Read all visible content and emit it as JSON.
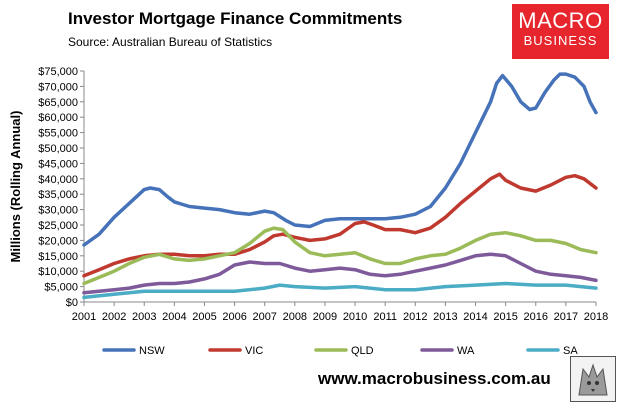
{
  "header": {
    "title": "Investor Mortgage Finance Commitments",
    "subtitle": "Source: Australian Bureau of Statistics"
  },
  "logo": {
    "line1": "MACRO",
    "line2": "BUSINESS"
  },
  "footer": {
    "website": "www.macrobusiness.com.au",
    "mascot_icon": "wolf-mascot-icon"
  },
  "colors": {
    "NSW": "#4572b8",
    "VIC": "#c0392f",
    "QLD": "#9bbb59",
    "WA": "#7e5a9b",
    "SA": "#4bacc6",
    "brand": "#e6262c"
  },
  "chart_data": {
    "type": "line",
    "title": "",
    "xlabel": "",
    "ylabel": "Millions (Rolling Annual)",
    "xlim": [
      2001,
      2018
    ],
    "ylim": [
      0,
      75000
    ],
    "yticks": [
      0,
      5000,
      10000,
      15000,
      20000,
      25000,
      30000,
      35000,
      40000,
      45000,
      50000,
      55000,
      60000,
      65000,
      70000,
      75000
    ],
    "ytick_labels": [
      "$0",
      "$5,000",
      "$10,000",
      "$15,000",
      "$20,000",
      "$25,000",
      "$30,000",
      "$35,000",
      "$40,000",
      "$45,000",
      "$50,000",
      "$55,000",
      "$60,000",
      "$65,000",
      "$70,000",
      "$75,000"
    ],
    "xticks": [
      2001,
      2002,
      2003,
      2004,
      2005,
      2006,
      2007,
      2008,
      2009,
      2010,
      2011,
      2012,
      2013,
      2014,
      2015,
      2016,
      2017,
      2018
    ],
    "xtick_labels": [
      "2001",
      "2002",
      "2003",
      "2004",
      "2005",
      "2006",
      "2007",
      "2008",
      "2009",
      "2010",
      "2011",
      "2012",
      "2013",
      "2014",
      "2015",
      "2016",
      "2017",
      "2018"
    ],
    "grid": false,
    "legend_position": "bottom",
    "series": [
      {
        "name": "NSW",
        "x": [
          2001,
          2001.5,
          2002,
          2002.5,
          2003,
          2003.2,
          2003.5,
          2003.8,
          2004,
          2004.5,
          2005,
          2005.5,
          2006,
          2006.5,
          2007,
          2007.3,
          2007.7,
          2008,
          2008.5,
          2009,
          2009.5,
          2010,
          2010.5,
          2011,
          2011.5,
          2012,
          2012.5,
          2013,
          2013.5,
          2014,
          2014.5,
          2014.7,
          2014.9,
          2015.2,
          2015.5,
          2015.8,
          2016,
          2016.3,
          2016.6,
          2016.8,
          2017,
          2017.3,
          2017.6,
          2017.8,
          2018
        ],
        "values": [
          18500,
          22000,
          27500,
          32000,
          36500,
          37000,
          36500,
          34000,
          32500,
          31000,
          30500,
          30000,
          29000,
          28500,
          29500,
          29000,
          26500,
          25000,
          24500,
          26500,
          27000,
          27000,
          27000,
          27000,
          27500,
          28500,
          31000,
          37000,
          45000,
          55000,
          65000,
          71000,
          73500,
          70000,
          65000,
          62500,
          63000,
          68000,
          72000,
          74000,
          74000,
          73000,
          70000,
          65000,
          61500
        ]
      },
      {
        "name": "VIC",
        "x": [
          2001,
          2001.5,
          2002,
          2002.5,
          2003,
          2003.5,
          2004,
          2004.5,
          2005,
          2005.5,
          2006,
          2006.5,
          2007,
          2007.3,
          2007.6,
          2008,
          2008.5,
          2009,
          2009.5,
          2010,
          2010.3,
          2010.6,
          2011,
          2011.5,
          2012,
          2012.5,
          2013,
          2013.5,
          2014,
          2014.5,
          2014.8,
          2015,
          2015.5,
          2016,
          2016.5,
          2017,
          2017.3,
          2017.6,
          2018
        ],
        "values": [
          8500,
          10500,
          12500,
          14000,
          15000,
          15500,
          15500,
          15000,
          15000,
          15500,
          15500,
          17000,
          19500,
          21500,
          22000,
          21000,
          20000,
          20500,
          22000,
          25500,
          26000,
          25000,
          23500,
          23500,
          22500,
          24000,
          27500,
          32000,
          36000,
          40000,
          41500,
          39500,
          37000,
          36000,
          38000,
          40500,
          41000,
          40000,
          37000
        ]
      },
      {
        "name": "QLD",
        "x": [
          2001,
          2001.5,
          2002,
          2002.5,
          2003,
          2003.5,
          2004,
          2004.5,
          2005,
          2005.5,
          2006,
          2006.5,
          2007,
          2007.3,
          2007.6,
          2008,
          2008.5,
          2009,
          2009.5,
          2010,
          2010.5,
          2011,
          2011.5,
          2012,
          2012.5,
          2013,
          2013.5,
          2014,
          2014.5,
          2015,
          2015.5,
          2016,
          2016.5,
          2017,
          2017.5,
          2018
        ],
        "values": [
          6000,
          8000,
          10000,
          12500,
          14500,
          15500,
          14000,
          13500,
          14000,
          15000,
          16000,
          19000,
          23000,
          24000,
          23500,
          19500,
          16000,
          15000,
          15500,
          16000,
          14000,
          12500,
          12500,
          14000,
          15000,
          15500,
          17500,
          20000,
          22000,
          22500,
          21500,
          20000,
          20000,
          19000,
          17000,
          16000
        ]
      },
      {
        "name": "WA",
        "x": [
          2001,
          2001.5,
          2002,
          2002.5,
          2003,
          2003.5,
          2004,
          2004.5,
          2005,
          2005.5,
          2006,
          2006.5,
          2007,
          2007.5,
          2008,
          2008.5,
          2009,
          2009.5,
          2010,
          2010.5,
          2011,
          2011.5,
          2012,
          2012.5,
          2013,
          2013.5,
          2014,
          2014.5,
          2015,
          2015.5,
          2016,
          2016.5,
          2017,
          2017.5,
          2018
        ],
        "values": [
          3000,
          3500,
          4000,
          4500,
          5500,
          6000,
          6000,
          6500,
          7500,
          9000,
          12000,
          13000,
          12500,
          12500,
          11000,
          10000,
          10500,
          11000,
          10500,
          9000,
          8500,
          9000,
          10000,
          11000,
          12000,
          13500,
          15000,
          15500,
          15000,
          12500,
          10000,
          9000,
          8500,
          8000,
          7000
        ]
      },
      {
        "name": "SA",
        "x": [
          2001,
          2002,
          2003,
          2004,
          2005,
          2006,
          2007,
          2007.5,
          2008,
          2009,
          2010,
          2011,
          2012,
          2013,
          2014,
          2015,
          2016,
          2017,
          2018
        ],
        "values": [
          1500,
          2500,
          3500,
          3500,
          3500,
          3500,
          4500,
          5500,
          5000,
          4500,
          5000,
          4000,
          4000,
          5000,
          5500,
          6000,
          5500,
          5500,
          4500
        ]
      }
    ]
  }
}
